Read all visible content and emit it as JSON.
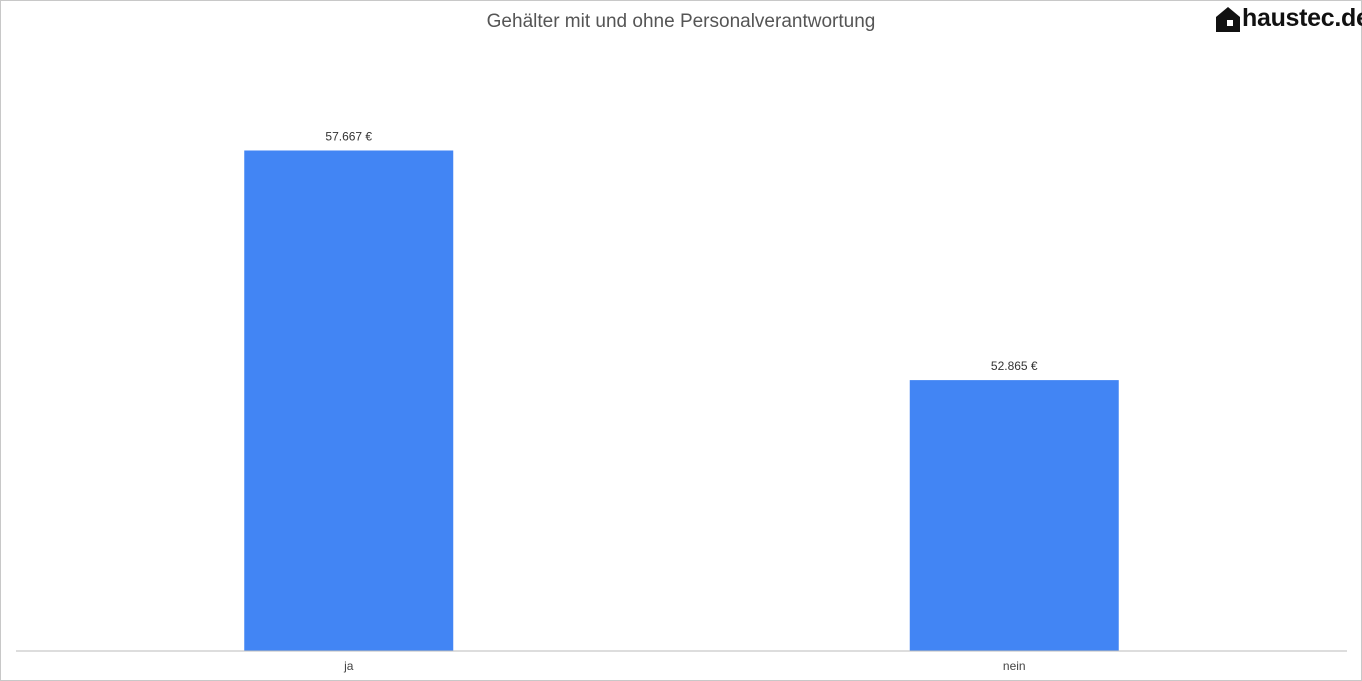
{
  "logo": {
    "text": "haustec.de"
  },
  "chart_data": {
    "type": "bar",
    "title": "Gehälter mit und ohne Personalverantwortung",
    "xlabel": "",
    "ylabel": "",
    "categories": [
      "ja",
      "nein"
    ],
    "values": [
      57667,
      52865
    ],
    "value_labels": [
      "57.667 €",
      "52.865 €"
    ],
    "ylim": [
      47200,
      58200
    ],
    "bar_color": "#4285f4",
    "axis_color": "#bbbbbb",
    "grid": false,
    "legend": "none"
  }
}
